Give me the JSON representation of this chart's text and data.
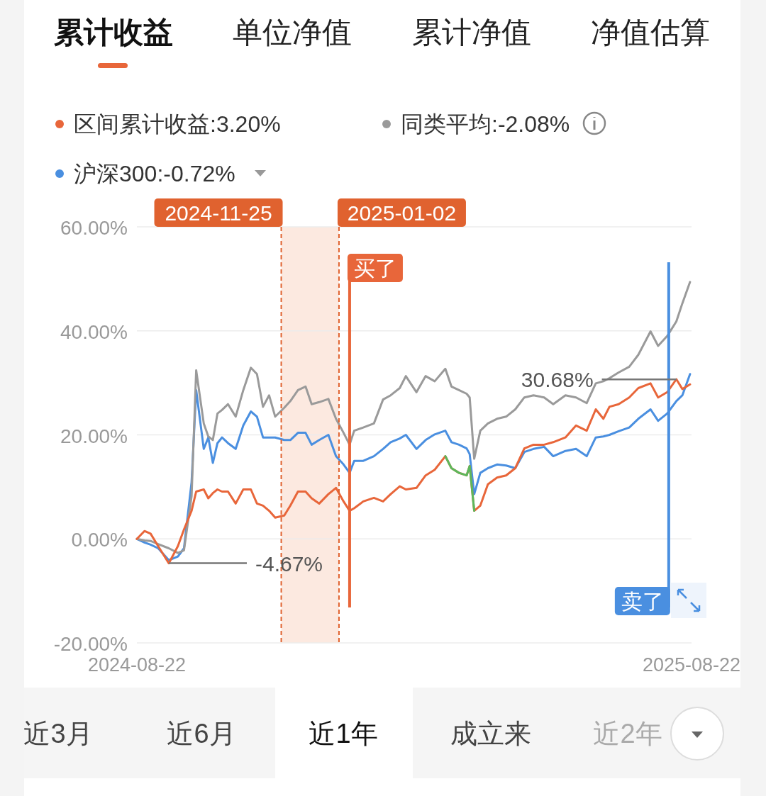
{
  "chart_data": {
    "type": "line",
    "annotations": [
      "累计收益",
      "单位净值",
      "累计净值",
      "净值估算",
      "近3月",
      "近6月",
      "近1年",
      "成立来",
      "近2年",
      {
        "text": "30.68%",
        "x": "2025-08-12",
        "y": 30.68
      },
      {
        "text": "-4.67%",
        "x": "2024-09-12",
        "y": -4.67
      }
    ],
    "x": [
      "2024-08-22",
      "2024-08-27",
      "2024-08-31",
      "2024-09-05",
      "2024-09-12",
      "2024-09-18",
      "2024-09-22",
      "2024-09-27",
      "2024-09-30",
      "2024-10-05",
      "2024-10-08",
      "2024-10-11",
      "2024-10-14",
      "2024-10-17",
      "2024-10-21",
      "2024-10-26",
      "2024-10-31",
      "2024-11-05",
      "2024-11-09",
      "2024-11-13",
      "2024-11-17",
      "2024-11-21",
      "2024-11-27",
      "2024-12-01",
      "2024-12-06",
      "2024-12-11",
      "2024-12-15",
      "2024-12-20",
      "2024-12-26",
      "2024-12-31",
      "2025-01-05",
      "2025-01-09",
      "2025-01-12",
      "2025-01-18",
      "2025-01-25",
      "2025-01-31",
      "2025-02-05",
      "2025-02-11",
      "2025-02-15",
      "2025-02-22",
      "2025-02-28",
      "2025-03-06",
      "2025-03-13",
      "2025-03-17",
      "2025-03-22",
      "2025-03-27",
      "2025-03-29",
      "2025-04-01",
      "2025-04-05",
      "2025-04-10",
      "2025-04-16",
      "2025-04-22",
      "2025-04-28",
      "2025-05-04",
      "2025-05-10",
      "2025-05-17",
      "2025-05-23",
      "2025-05-31",
      "2025-06-07",
      "2025-06-14",
      "2025-06-20",
      "2025-06-25",
      "2025-06-29",
      "2025-07-05",
      "2025-07-12",
      "2025-07-18",
      "2025-07-26",
      "2025-07-31",
      "2025-08-06",
      "2025-08-12",
      "2025-08-16",
      "2025-08-21"
    ],
    "series": [
      {
        "name": "区间累计收益:3.20%",
        "color": "#e8663a",
        "values": [
          0,
          1.5,
          1.0,
          -1.4,
          -4.7,
          -1.4,
          1.8,
          5.4,
          9.1,
          9.5,
          7.8,
          8.8,
          9.5,
          9.1,
          9.1,
          6.8,
          9.5,
          9.5,
          6.8,
          6.4,
          5.4,
          4.1,
          4.5,
          6.4,
          9.1,
          9.1,
          7.8,
          6.8,
          8.6,
          9.8,
          7.2,
          5.4,
          5.9,
          7.2,
          7.9,
          7.2,
          8.6,
          10.1,
          9.5,
          9.8,
          12.2,
          13.3,
          15.9,
          13.6,
          12.7,
          12.2,
          14.0,
          5.4,
          6.4,
          10.5,
          11.8,
          12.2,
          13.6,
          17.4,
          18.1,
          18.1,
          18.6,
          19.5,
          21.8,
          20.8,
          24.9,
          23.1,
          25.4,
          25.9,
          27.2,
          29.0,
          29.9,
          27.2,
          28.2,
          30.7,
          28.8,
          29.7
        ]
      },
      {
        "name": "同类平均:-2.08%",
        "color": "#9a9a9a",
        "values": [
          0,
          -0.3,
          -0.4,
          -1.0,
          -1.8,
          -2.7,
          -2.2,
          8.2,
          32.4,
          22.2,
          19.7,
          19.0,
          24.1,
          24.8,
          25.9,
          23.5,
          28.6,
          32.9,
          31.7,
          25.4,
          27.6,
          23.5,
          25.2,
          26.5,
          28.6,
          29.3,
          25.9,
          26.3,
          26.9,
          23.1,
          20.4,
          18.1,
          20.8,
          21.4,
          22.2,
          26.8,
          27.6,
          29.0,
          31.3,
          28.2,
          31.3,
          30.3,
          32.7,
          29.3,
          28.6,
          27.9,
          27.2,
          15.4,
          20.8,
          22.2,
          23.1,
          23.5,
          24.9,
          27.2,
          27.6,
          27.2,
          25.9,
          27.6,
          27.2,
          26.1,
          29.9,
          30.3,
          30.9,
          32.0,
          33.1,
          35.4,
          39.9,
          37.1,
          39.0,
          41.8,
          45.3,
          49.4
        ]
      },
      {
        "name": "沪深300:-0.72%",
        "color": "#4a8fe0",
        "values": [
          0,
          -0.7,
          -1.1,
          -1.8,
          -4.1,
          -3.4,
          -1.8,
          10.9,
          28.6,
          17.3,
          19.5,
          14.6,
          18.4,
          19.5,
          18.4,
          17.3,
          21.8,
          24.5,
          23.5,
          19.5,
          19.5,
          19.5,
          19.0,
          19.0,
          20.4,
          20.4,
          18.1,
          19.0,
          20.0,
          15.9,
          14.3,
          12.7,
          15.0,
          15.0,
          15.9,
          17.3,
          18.6,
          19.3,
          20.0,
          17.3,
          19.0,
          20.1,
          20.8,
          18.6,
          18.1,
          17.4,
          16.3,
          8.6,
          12.7,
          13.6,
          14.3,
          14.1,
          13.6,
          16.7,
          17.3,
          17.7,
          15.9,
          16.9,
          17.3,
          15.9,
          19.5,
          19.7,
          20.0,
          20.7,
          21.4,
          23.1,
          24.9,
          22.7,
          24.1,
          26.5,
          27.6,
          31.7
        ]
      },
      {
        "color": "#5cb85c",
        "values": [
          null,
          null,
          null,
          null,
          null,
          null,
          null,
          null,
          null,
          null,
          null,
          null,
          null,
          null,
          null,
          null,
          null,
          null,
          null,
          null,
          null,
          null,
          null,
          null,
          null,
          null,
          null,
          null,
          null,
          null,
          null,
          null,
          null,
          null,
          null,
          null,
          null,
          null,
          null,
          null,
          null,
          null,
          15.9,
          13.6,
          12.7,
          12.2,
          14.0,
          5.4,
          null,
          null,
          null,
          null,
          null,
          null,
          null,
          null,
          null,
          null,
          null,
          null,
          null,
          null,
          null,
          null,
          null,
          null,
          null,
          null,
          null,
          null,
          null,
          null
        ]
      }
    ],
    "xlim": [
      "2024-08-22",
      "2025-08-22"
    ],
    "xticks": [
      "2024-08-22",
      "2025-08-22"
    ],
    "ylim": [
      -20,
      60
    ],
    "yticks": [
      {
        "value": -20,
        "label": "-20.00%"
      },
      {
        "value": 0,
        "label": "0.00%"
      },
      {
        "value": 20,
        "label": "20.00%"
      },
      {
        "value": 40,
        "label": "40.00%"
      },
      {
        "value": 60,
        "label": "60.00%"
      }
    ],
    "grid": "y",
    "legend": "top left",
    "ref_lines": [
      {
        "axis": "x",
        "value": "2024-11-25",
        "label": "2024-11-25",
        "color": "#e0622f",
        "line_style": "dashed"
      },
      {
        "axis": "x",
        "value": "2025-01-02",
        "label": "2025-01-02",
        "color": "#e0622f",
        "line_style": "dashed"
      },
      {
        "axis": "x",
        "value": "2025-01-09",
        "label": "买了",
        "color": "#e8663a",
        "line_style": "solid"
      },
      {
        "axis": "x",
        "value": "2025-08-07",
        "label": "卖了",
        "color": "#4a8fe0",
        "line_style": "solid"
      }
    ],
    "bands": [
      {
        "axis": "x",
        "from": "2024-11-25",
        "to": "2025-01-02",
        "color": "#fbe3d8"
      }
    ]
  }
}
